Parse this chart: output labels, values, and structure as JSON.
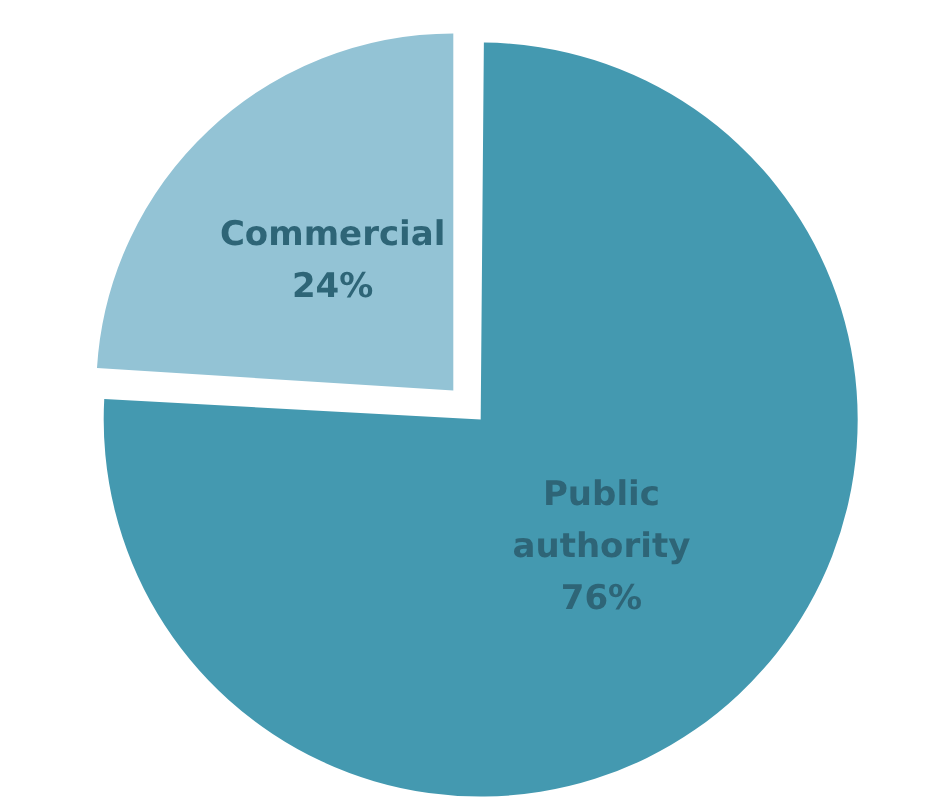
{
  "chart_data": {
    "type": "pie",
    "categories": [
      "Public authority",
      "Commercial"
    ],
    "values": [
      76,
      24
    ],
    "colors": [
      "#4499b0",
      "#93c3d5"
    ],
    "value_labels": [
      "76%",
      "24%"
    ],
    "legend": false
  }
}
